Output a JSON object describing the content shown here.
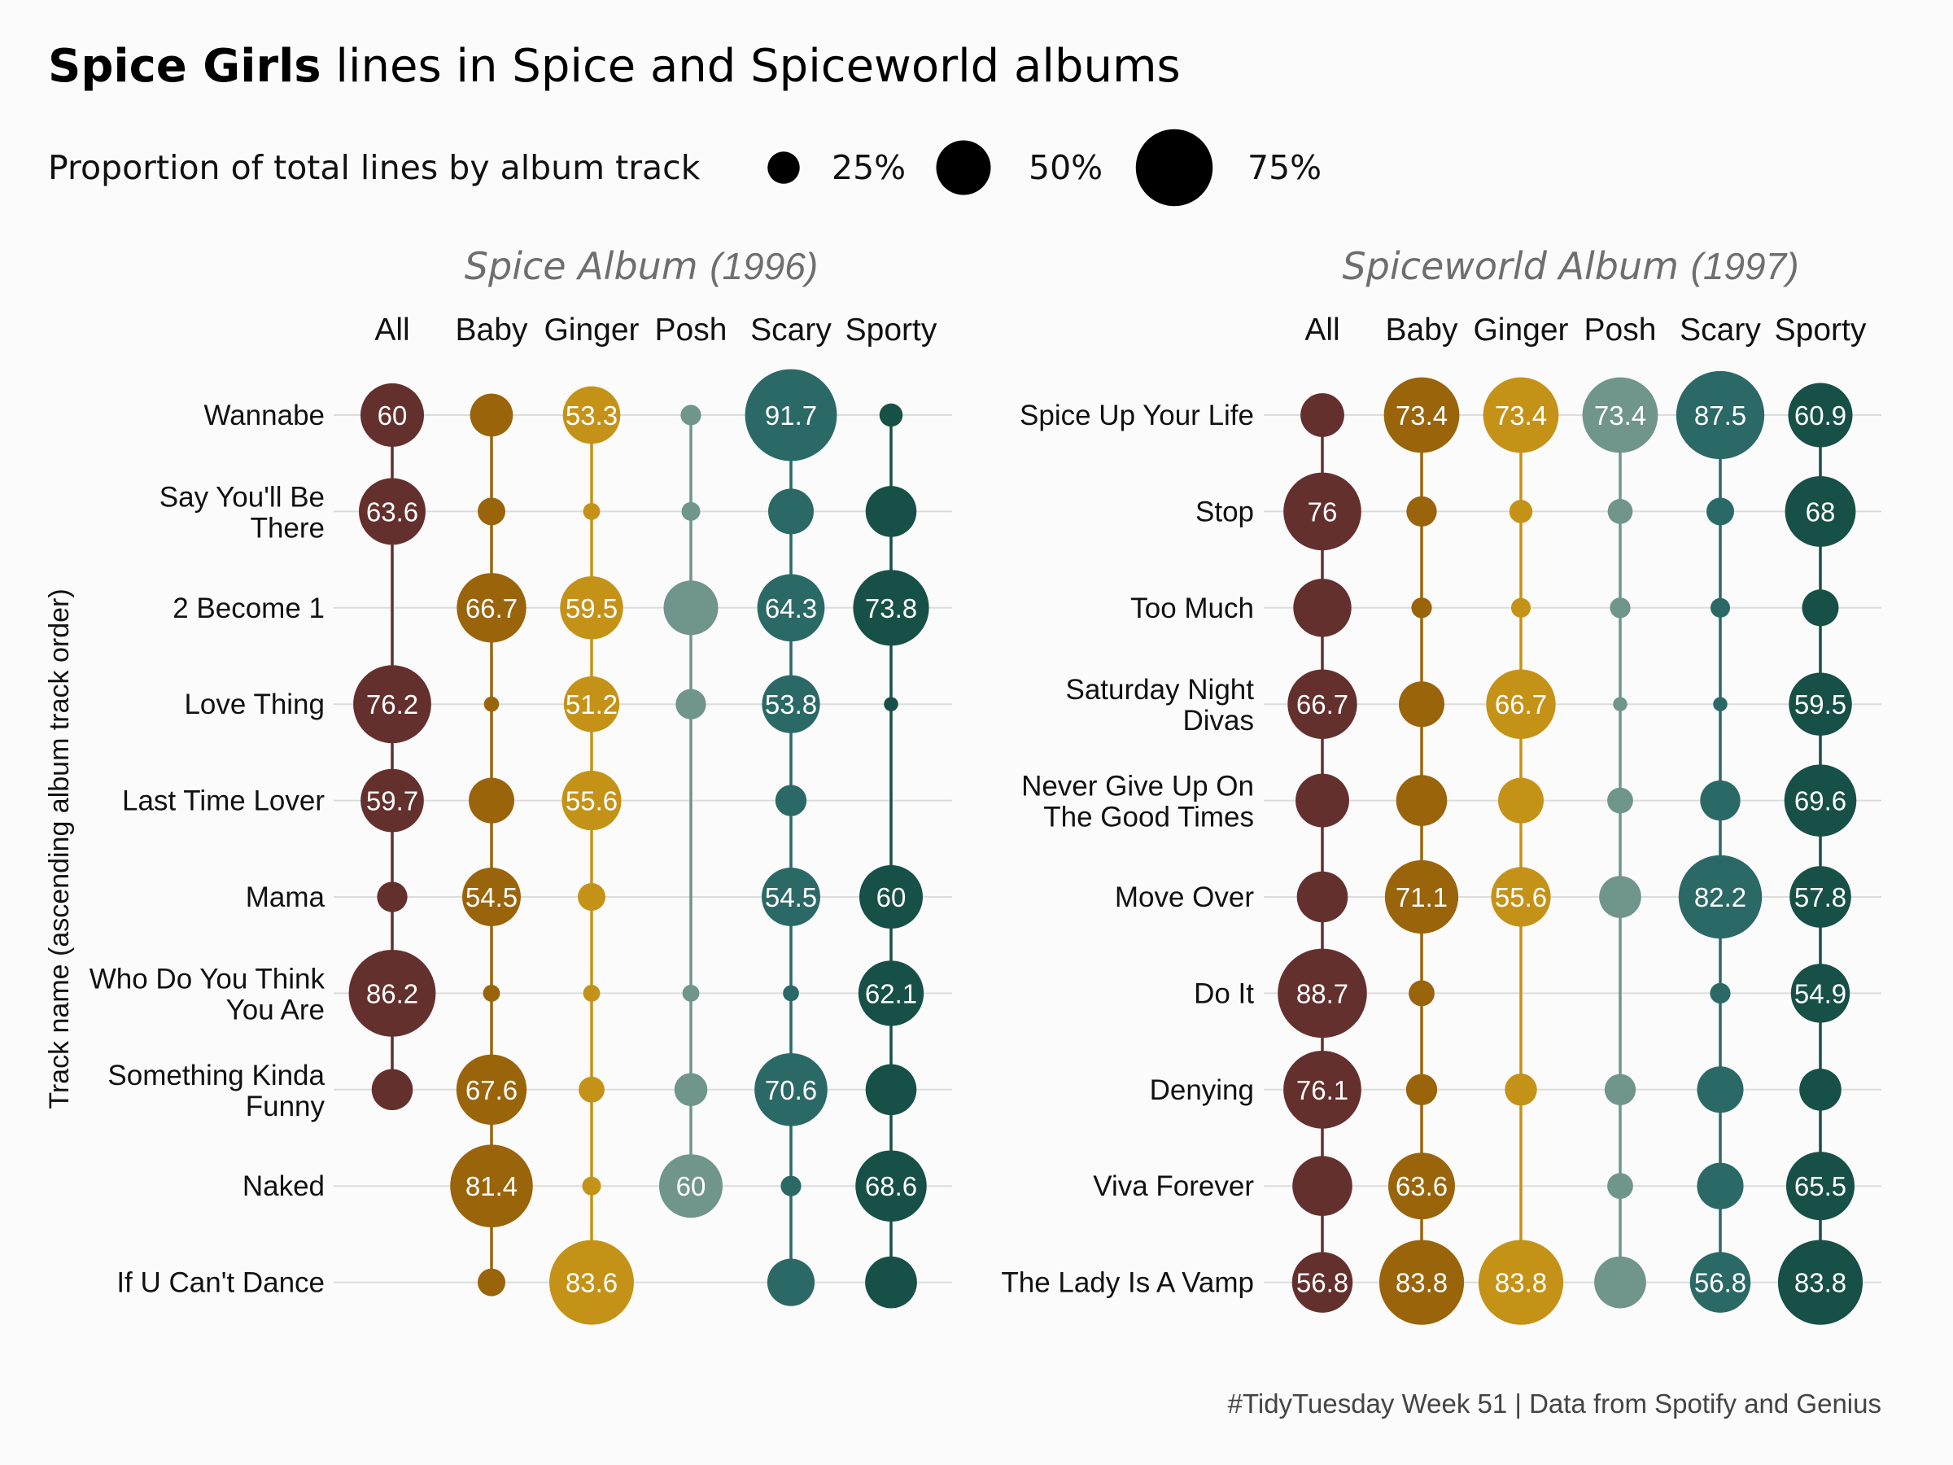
{
  "chart_data": {
    "type": "dot-matrix",
    "title_bold": "Spice Girls",
    "title_rest": " lines in Spice and Spiceworld albums",
    "legend": {
      "title": "Proportion of total lines by album track",
      "items": [
        {
          "value": 25,
          "label": "25%"
        },
        {
          "value": 50,
          "label": "50%"
        },
        {
          "value": 75,
          "label": "75%"
        }
      ]
    },
    "ylabel": "Track name (ascending album track order)",
    "caption": "#TidyTuesday Week 51 | Data from Spotify and Genius",
    "columns": [
      "All",
      "Baby",
      "Ginger",
      "Posh",
      "Scary",
      "Sporty"
    ],
    "colors": {
      "All": "#64302e",
      "Baby": "#9a640b",
      "Ginger": "#c59218",
      "Posh": "#70958b",
      "Scary": "#2b6967",
      "Sporty": "#175046"
    },
    "panels": [
      {
        "title_main": "Spice Album",
        "title_year": "(1996)",
        "tracks": [
          {
            "name": [
              "Wannabe"
            ],
            "values": [
              60,
              37,
              53.3,
              12,
              91.7,
              15
            ],
            "labels": [
              "60",
              "",
              "53.3",
              "",
              "91.7",
              ""
            ]
          },
          {
            "name": [
              "Say You'll Be",
              "There"
            ],
            "values": [
              63.6,
              20,
              8,
              10,
              40,
              46
            ],
            "labels": [
              "63.6",
              "",
              "",
              "",
              "",
              ""
            ]
          },
          {
            "name": [
              "2 Become 1"
            ],
            "values": [
              null,
              66.7,
              59.5,
              50,
              64.3,
              73.8
            ],
            "labels": [
              "",
              "66.7",
              "59.5",
              "",
              "64.3",
              "73.8"
            ]
          },
          {
            "name": [
              "Love Thing"
            ],
            "values": [
              76.2,
              6,
              51.2,
              23,
              53.8,
              5
            ],
            "labels": [
              "76.2",
              "",
              "51.2",
              "",
              "53.8",
              ""
            ]
          },
          {
            "name": [
              "Last Time Lover"
            ],
            "values": [
              59.7,
              40,
              55.6,
              null,
              24,
              null
            ],
            "labels": [
              "59.7",
              "",
              "55.6",
              "",
              "",
              ""
            ]
          },
          {
            "name": [
              "Mama"
            ],
            "values": [
              23,
              54.5,
              20,
              null,
              54.5,
              60
            ],
            "labels": [
              "",
              "54.5",
              "",
              "",
              "54.5",
              "60"
            ]
          },
          {
            "name": [
              "Who Do You Think",
              "You Are"
            ],
            "values": [
              86.2,
              8,
              8,
              8,
              7,
              62.1
            ],
            "labels": [
              "86.2",
              "",
              "",
              "",
              "",
              "62.1"
            ]
          },
          {
            "name": [
              "Something Kinda",
              "Funny"
            ],
            "values": [
              35,
              67.6,
              18,
              26,
              70.6,
              46
            ],
            "labels": [
              "",
              "67.6",
              "",
              "",
              "70.6",
              ""
            ]
          },
          {
            "name": [
              "Naked"
            ],
            "values": [
              null,
              81.4,
              10,
              60,
              12,
              68.6
            ],
            "labels": [
              "",
              "81.4",
              "",
              "60",
              "",
              "68.6"
            ]
          },
          {
            "name": [
              "If U Can't Dance"
            ],
            "values": [
              null,
              20,
              83.6,
              null,
              42,
              47
            ],
            "labels": [
              "",
              "",
              "83.6",
              "",
              "",
              ""
            ]
          }
        ]
      },
      {
        "title_main": "Spiceworld Album",
        "title_year": "(1997)",
        "tracks": [
          {
            "name": [
              "Spice Up Your Life"
            ],
            "values": [
              38,
              73.4,
              73.4,
              73.4,
              87.5,
              60.9
            ],
            "labels": [
              "",
              "73.4",
              "73.4",
              "73.4",
              "87.5",
              "60.9"
            ]
          },
          {
            "name": [
              "Stop"
            ],
            "values": [
              76,
              23,
              15,
              17,
              20,
              68
            ],
            "labels": [
              "76",
              "",
              "",
              "",
              "",
              "68"
            ]
          },
          {
            "name": [
              "Too Much"
            ],
            "values": [
              54,
              12,
              11,
              12,
              11,
              30
            ],
            "labels": [
              "",
              "",
              "",
              "",
              "",
              ""
            ]
          },
          {
            "name": [
              "Saturday Night",
              "Divas"
            ],
            "values": [
              66.7,
              40,
              66.7,
              5,
              5,
              59.5
            ],
            "labels": [
              "66.7",
              "",
              "66.7",
              "",
              "",
              "59.5"
            ]
          },
          {
            "name": [
              "Never Give Up On",
              "The Good Times"
            ],
            "values": [
              49,
              46,
              40,
              18,
              34,
              69.6
            ],
            "labels": [
              "",
              "",
              "",
              "",
              "",
              "69.6"
            ]
          },
          {
            "name": [
              "Move Over"
            ],
            "values": [
              46,
              71.1,
              55.6,
              36,
              82.2,
              57.8
            ],
            "labels": [
              "",
              "71.1",
              "55.6",
              "",
              "82.2",
              "57.8"
            ]
          },
          {
            "name": [
              "Do It"
            ],
            "values": [
              88.7,
              18,
              null,
              null,
              12,
              54.9
            ],
            "labels": [
              "88.7",
              "",
              "",
              "",
              "",
              "54.9"
            ]
          },
          {
            "name": [
              "Denying"
            ],
            "values": [
              76.1,
              24,
              25,
              24,
              41,
              36
            ],
            "labels": [
              "76.1",
              "",
              "",
              "",
              "",
              ""
            ]
          },
          {
            "name": [
              "Viva Forever"
            ],
            "values": [
              56,
              63.6,
              null,
              18,
              41,
              65.5
            ],
            "labels": [
              "",
              "63.6",
              "",
              "",
              "",
              "65.5"
            ]
          },
          {
            "name": [
              "The Lady Is A Vamp"
            ],
            "values": [
              56.8,
              83.8,
              83.8,
              47,
              56.8,
              83.8
            ],
            "labels": [
              "56.8",
              "83.8",
              "83.8",
              "",
              "56.8",
              "83.8"
            ]
          }
        ]
      }
    ]
  }
}
